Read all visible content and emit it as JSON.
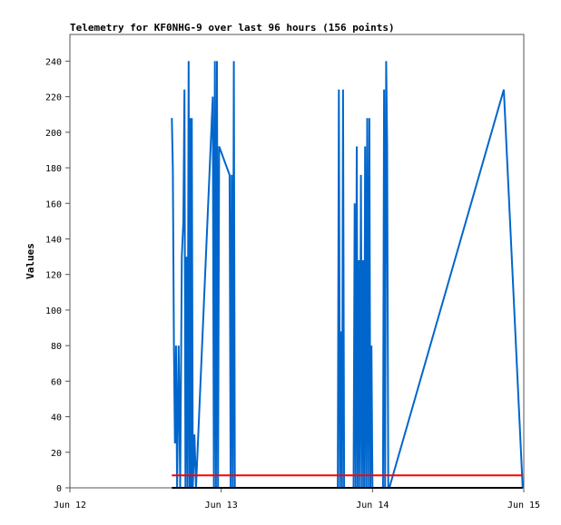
{
  "chart_data": {
    "type": "line",
    "title": "Telemetry for KF0NHG-9 over last 96 hours (156 points)",
    "xlabel": "",
    "ylabel": "Values",
    "x_ticks": [
      "Jun 12",
      "Jun 13",
      "Jun 14",
      "Jun 15"
    ],
    "x_range": [
      "2024-06-12T00:00",
      "2024-06-15T00:00"
    ],
    "ylim": [
      0,
      255
    ],
    "y_ticks": [
      0,
      20,
      40,
      60,
      80,
      100,
      120,
      140,
      160,
      180,
      200,
      220,
      240
    ],
    "grid": false,
    "series": [
      {
        "color": "#0066cc",
        "points": [
          [
            "2024-06-12T16:10",
            208
          ],
          [
            "2024-06-12T16:20",
            180
          ],
          [
            "2024-06-12T16:30",
            80
          ],
          [
            "2024-06-12T16:40",
            25
          ],
          [
            "2024-06-12T16:50",
            80
          ],
          [
            "2024-06-12T17:00",
            0
          ],
          [
            "2024-06-12T17:15",
            80
          ],
          [
            "2024-06-12T17:30",
            0
          ],
          [
            "2024-06-12T17:45",
            130
          ],
          [
            "2024-06-12T18:00",
            150
          ],
          [
            "2024-06-12T18:10",
            224
          ],
          [
            "2024-06-12T18:20",
            0
          ],
          [
            "2024-06-12T18:30",
            130
          ],
          [
            "2024-06-12T18:40",
            0
          ],
          [
            "2024-06-12T18:50",
            240
          ],
          [
            "2024-06-12T19:00",
            0
          ],
          [
            "2024-06-12T19:05",
            208
          ],
          [
            "2024-06-12T19:15",
            0
          ],
          [
            "2024-06-12T19:20",
            208
          ],
          [
            "2024-06-12T19:30",
            0
          ],
          [
            "2024-06-12T19:45",
            30
          ],
          [
            "2024-06-12T20:00",
            0
          ],
          [
            "2024-06-12T22:40",
            220
          ],
          [
            "2024-06-12T22:50",
            0
          ],
          [
            "2024-06-12T23:00",
            240
          ],
          [
            "2024-06-12T23:10",
            0
          ],
          [
            "2024-06-12T23:20",
            240
          ],
          [
            "2024-06-12T23:30",
            0
          ],
          [
            "2024-06-12T23:40",
            192
          ],
          [
            "2024-06-13T01:20",
            176
          ],
          [
            "2024-06-13T01:30",
            0
          ],
          [
            "2024-06-13T01:40",
            176
          ],
          [
            "2024-06-13T01:50",
            0
          ],
          [
            "2024-06-13T02:00",
            240
          ],
          [
            "2024-06-13T02:10",
            0
          ],
          [
            "2024-06-13T18:30",
            0
          ],
          [
            "2024-06-13T18:40",
            224
          ],
          [
            "2024-06-13T18:50",
            0
          ],
          [
            "2024-06-13T19:00",
            88
          ],
          [
            "2024-06-13T19:10",
            0
          ],
          [
            "2024-06-13T19:20",
            224
          ],
          [
            "2024-06-13T19:30",
            0
          ],
          [
            "2024-06-13T21:00",
            0
          ],
          [
            "2024-06-13T21:10",
            160
          ],
          [
            "2024-06-13T21:20",
            0
          ],
          [
            "2024-06-13T21:30",
            192
          ],
          [
            "2024-06-13T21:40",
            0
          ],
          [
            "2024-06-13T21:50",
            128
          ],
          [
            "2024-06-13T22:00",
            0
          ],
          [
            "2024-06-13T22:10",
            176
          ],
          [
            "2024-06-13T22:20",
            0
          ],
          [
            "2024-06-13T22:30",
            128
          ],
          [
            "2024-06-13T22:40",
            0
          ],
          [
            "2024-06-13T22:50",
            192
          ],
          [
            "2024-06-13T23:00",
            0
          ],
          [
            "2024-06-13T23:10",
            208
          ],
          [
            "2024-06-13T23:20",
            0
          ],
          [
            "2024-06-13T23:30",
            208
          ],
          [
            "2024-06-13T23:40",
            0
          ],
          [
            "2024-06-13T23:50",
            80
          ],
          [
            "2024-06-14T00:00",
            0
          ],
          [
            "2024-06-14T01:40",
            0
          ],
          [
            "2024-06-14T01:50",
            224
          ],
          [
            "2024-06-14T02:00",
            0
          ],
          [
            "2024-06-14T02:10",
            240
          ],
          [
            "2024-06-14T02:20",
            192
          ],
          [
            "2024-06-14T02:30",
            0
          ],
          [
            "2024-06-14T02:40",
            0
          ],
          [
            "2024-06-14T20:50",
            224
          ],
          [
            "2024-06-14T23:50",
            0
          ]
        ]
      },
      {
        "color": "#ff0000",
        "points": [
          [
            "2024-06-12T16:10",
            7
          ],
          [
            "2024-06-14T23:50",
            7
          ]
        ]
      },
      {
        "color": "#000000",
        "points": [
          [
            "2024-06-12T16:10",
            0
          ],
          [
            "2024-06-14T23:50",
            0
          ]
        ]
      }
    ]
  }
}
